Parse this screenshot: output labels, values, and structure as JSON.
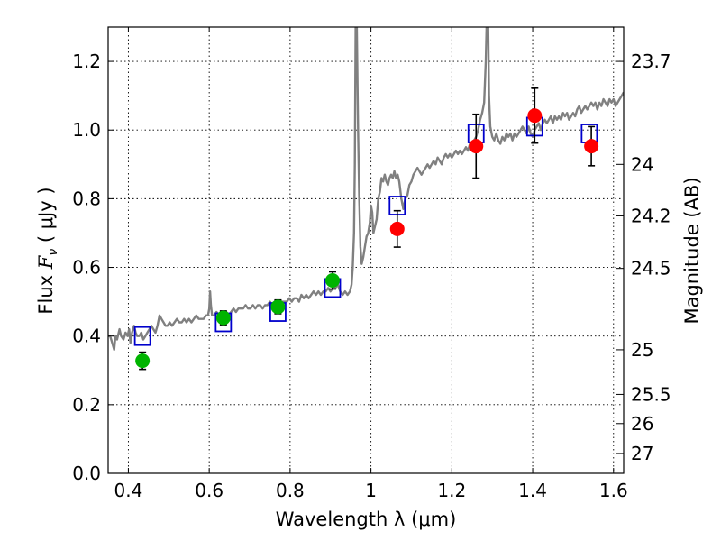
{
  "chart_data": {
    "type": "scatter",
    "title": "",
    "xlabel": "Wavelength  λ (μm)",
    "ylabel": "Flux  F_ν  ( μJy )",
    "ylabel_parts": {
      "prefix": "Flux ",
      "symbol": "F",
      "subscript": "ν",
      "suffix": " ( μJy )"
    },
    "y2label": "Magnitude (AB)",
    "xlim": [
      0.35,
      1.625
    ],
    "ylim": [
      0.0,
      1.3
    ],
    "grid": true,
    "x_ticks": [
      {
        "value": 0.4,
        "label": "0.4"
      },
      {
        "value": 0.6,
        "label": "0.6"
      },
      {
        "value": 0.8,
        "label": "0.8"
      },
      {
        "value": 1.0,
        "label": "1"
      },
      {
        "value": 1.2,
        "label": "1.2"
      },
      {
        "value": 1.4,
        "label": "1.4"
      },
      {
        "value": 1.6,
        "label": "1.6"
      }
    ],
    "y_ticks": [
      {
        "value": 0.0,
        "label": "0.0"
      },
      {
        "value": 0.2,
        "label": "0.2"
      },
      {
        "value": 0.4,
        "label": "0.4"
      },
      {
        "value": 0.6,
        "label": "0.6"
      },
      {
        "value": 0.8,
        "label": "0.8"
      },
      {
        "value": 1.0,
        "label": "1.0"
      },
      {
        "value": 1.2,
        "label": "1.2"
      }
    ],
    "y2_ticks": [
      {
        "flux": 1.2,
        "label": "23.7"
      },
      {
        "flux": 0.9,
        "label": "24"
      },
      {
        "flux": 0.75,
        "label": "24.2"
      },
      {
        "flux": 0.597,
        "label": "24.5"
      },
      {
        "flux": 0.36,
        "label": "25"
      },
      {
        "flux": 0.23,
        "label": "25.5"
      },
      {
        "flux": 0.145,
        "label": "26"
      },
      {
        "flux": 0.058,
        "label": "27"
      }
    ],
    "series": [
      {
        "kind": "line",
        "color": "#808080",
        "points": [
          [
            0.35,
            0.4
          ],
          [
            0.355,
            0.4
          ],
          [
            0.36,
            0.38
          ],
          [
            0.365,
            0.36
          ],
          [
            0.368,
            0.4
          ],
          [
            0.372,
            0.39
          ],
          [
            0.378,
            0.42
          ],
          [
            0.382,
            0.4
          ],
          [
            0.388,
            0.39
          ],
          [
            0.393,
            0.41
          ],
          [
            0.398,
            0.4
          ],
          [
            0.402,
            0.42
          ],
          [
            0.405,
            0.38
          ],
          [
            0.409,
            0.41
          ],
          [
            0.414,
            0.43
          ],
          [
            0.418,
            0.41
          ],
          [
            0.422,
            0.4
          ],
          [
            0.427,
            0.4
          ],
          [
            0.432,
            0.41
          ],
          [
            0.437,
            0.39
          ],
          [
            0.442,
            0.4
          ],
          [
            0.447,
            0.41
          ],
          [
            0.452,
            0.42
          ],
          [
            0.457,
            0.43
          ],
          [
            0.462,
            0.42
          ],
          [
            0.467,
            0.41
          ],
          [
            0.472,
            0.43
          ],
          [
            0.477,
            0.46
          ],
          [
            0.482,
            0.45
          ],
          [
            0.487,
            0.44
          ],
          [
            0.492,
            0.43
          ],
          [
            0.497,
            0.43
          ],
          [
            0.502,
            0.44
          ],
          [
            0.508,
            0.43
          ],
          [
            0.514,
            0.44
          ],
          [
            0.52,
            0.45
          ],
          [
            0.526,
            0.44
          ],
          [
            0.532,
            0.44
          ],
          [
            0.538,
            0.45
          ],
          [
            0.544,
            0.44
          ],
          [
            0.55,
            0.45
          ],
          [
            0.556,
            0.44
          ],
          [
            0.562,
            0.45
          ],
          [
            0.568,
            0.46
          ],
          [
            0.574,
            0.45
          ],
          [
            0.58,
            0.45
          ],
          [
            0.586,
            0.45
          ],
          [
            0.592,
            0.46
          ],
          [
            0.597,
            0.46
          ],
          [
            0.6,
            0.48
          ],
          [
            0.602,
            0.53
          ],
          [
            0.604,
            0.49
          ],
          [
            0.607,
            0.46
          ],
          [
            0.612,
            0.46
          ],
          [
            0.618,
            0.47
          ],
          [
            0.624,
            0.46
          ],
          [
            0.63,
            0.46
          ],
          [
            0.636,
            0.46
          ],
          [
            0.642,
            0.47
          ],
          [
            0.648,
            0.46
          ],
          [
            0.654,
            0.47
          ],
          [
            0.66,
            0.48
          ],
          [
            0.666,
            0.47
          ],
          [
            0.672,
            0.48
          ],
          [
            0.678,
            0.48
          ],
          [
            0.684,
            0.48
          ],
          [
            0.69,
            0.49
          ],
          [
            0.696,
            0.48
          ],
          [
            0.702,
            0.48
          ],
          [
            0.708,
            0.49
          ],
          [
            0.714,
            0.48
          ],
          [
            0.72,
            0.49
          ],
          [
            0.726,
            0.49
          ],
          [
            0.732,
            0.48
          ],
          [
            0.738,
            0.49
          ],
          [
            0.744,
            0.49
          ],
          [
            0.75,
            0.5
          ],
          [
            0.756,
            0.49
          ],
          [
            0.762,
            0.5
          ],
          [
            0.768,
            0.5
          ],
          [
            0.774,
            0.49
          ],
          [
            0.78,
            0.5
          ],
          [
            0.786,
            0.5
          ],
          [
            0.792,
            0.5
          ],
          [
            0.798,
            0.51
          ],
          [
            0.804,
            0.5
          ],
          [
            0.81,
            0.51
          ],
          [
            0.816,
            0.51
          ],
          [
            0.822,
            0.5
          ],
          [
            0.828,
            0.52
          ],
          [
            0.834,
            0.51
          ],
          [
            0.84,
            0.52
          ],
          [
            0.846,
            0.51
          ],
          [
            0.852,
            0.52
          ],
          [
            0.858,
            0.53
          ],
          [
            0.864,
            0.52
          ],
          [
            0.87,
            0.53
          ],
          [
            0.876,
            0.52
          ],
          [
            0.882,
            0.53
          ],
          [
            0.888,
            0.53
          ],
          [
            0.894,
            0.54
          ],
          [
            0.9,
            0.53
          ],
          [
            0.906,
            0.54
          ],
          [
            0.912,
            0.54
          ],
          [
            0.918,
            0.55
          ],
          [
            0.924,
            0.53
          ],
          [
            0.93,
            0.52
          ],
          [
            0.936,
            0.53
          ],
          [
            0.942,
            0.52
          ],
          [
            0.948,
            0.53
          ],
          [
            0.952,
            0.55
          ],
          [
            0.955,
            0.6
          ],
          [
            0.958,
            0.7
          ],
          [
            0.96,
            0.9
          ],
          [
            0.962,
            1.3
          ],
          [
            0.965,
            1.3
          ],
          [
            0.968,
            1.0
          ],
          [
            0.971,
            0.8
          ],
          [
            0.974,
            0.66
          ],
          [
            0.977,
            0.61
          ],
          [
            0.981,
            0.63
          ],
          [
            0.985,
            0.66
          ],
          [
            0.989,
            0.69
          ],
          [
            0.993,
            0.7
          ],
          [
            0.997,
            0.73
          ],
          [
            1.0,
            0.78
          ],
          [
            1.003,
            0.76
          ],
          [
            1.006,
            0.7
          ],
          [
            1.01,
            0.72
          ],
          [
            1.014,
            0.74
          ],
          [
            1.018,
            0.8
          ],
          [
            1.022,
            0.82
          ],
          [
            1.026,
            0.86
          ],
          [
            1.03,
            0.85
          ],
          [
            1.034,
            0.87
          ],
          [
            1.038,
            0.85
          ],
          [
            1.042,
            0.84
          ],
          [
            1.046,
            0.86
          ],
          [
            1.05,
            0.87
          ],
          [
            1.054,
            0.86
          ],
          [
            1.058,
            0.88
          ],
          [
            1.062,
            0.86
          ],
          [
            1.066,
            0.87
          ],
          [
            1.07,
            0.85
          ],
          [
            1.075,
            0.8
          ],
          [
            1.08,
            0.77
          ],
          [
            1.085,
            0.8
          ],
          [
            1.09,
            0.81
          ],
          [
            1.095,
            0.84
          ],
          [
            1.1,
            0.85
          ],
          [
            1.105,
            0.87
          ],
          [
            1.11,
            0.88
          ],
          [
            1.115,
            0.89
          ],
          [
            1.12,
            0.88
          ],
          [
            1.125,
            0.87
          ],
          [
            1.13,
            0.88
          ],
          [
            1.135,
            0.89
          ],
          [
            1.14,
            0.9
          ],
          [
            1.145,
            0.89
          ],
          [
            1.15,
            0.9
          ],
          [
            1.155,
            0.91
          ],
          [
            1.16,
            0.9
          ],
          [
            1.165,
            0.92
          ],
          [
            1.17,
            0.91
          ],
          [
            1.175,
            0.9
          ],
          [
            1.18,
            0.92
          ],
          [
            1.185,
            0.93
          ],
          [
            1.19,
            0.92
          ],
          [
            1.195,
            0.93
          ],
          [
            1.2,
            0.92
          ],
          [
            1.205,
            0.93
          ],
          [
            1.21,
            0.94
          ],
          [
            1.215,
            0.93
          ],
          [
            1.22,
            0.94
          ],
          [
            1.225,
            0.93
          ],
          [
            1.23,
            0.94
          ],
          [
            1.235,
            0.95
          ],
          [
            1.24,
            0.94
          ],
          [
            1.245,
            0.96
          ],
          [
            1.25,
            0.95
          ],
          [
            1.255,
            0.97
          ],
          [
            1.26,
            0.98
          ],
          [
            1.265,
            1.0
          ],
          [
            1.27,
            1.03
          ],
          [
            1.275,
            1.05
          ],
          [
            1.28,
            1.08
          ],
          [
            1.284,
            1.2
          ],
          [
            1.286,
            1.3
          ],
          [
            1.29,
            1.3
          ],
          [
            1.292,
            1.1
          ],
          [
            1.295,
            1.01
          ],
          [
            1.3,
            0.98
          ],
          [
            1.305,
            0.97
          ],
          [
            1.31,
            0.99
          ],
          [
            1.315,
            0.97
          ],
          [
            1.32,
            0.96
          ],
          [
            1.325,
            0.98
          ],
          [
            1.33,
            0.97
          ],
          [
            1.335,
            0.99
          ],
          [
            1.34,
            0.98
          ],
          [
            1.345,
            0.99
          ],
          [
            1.35,
            0.97
          ],
          [
            1.355,
            0.99
          ],
          [
            1.36,
            0.98
          ],
          [
            1.365,
            0.99
          ],
          [
            1.37,
            1.0
          ],
          [
            1.375,
            1.01
          ],
          [
            1.38,
            1.0
          ],
          [
            1.385,
            0.99
          ],
          [
            1.39,
            1.01
          ],
          [
            1.395,
            0.99
          ],
          [
            1.4,
            0.98
          ],
          [
            1.405,
            1.0
          ],
          [
            1.41,
            1.01
          ],
          [
            1.415,
            1.02
          ],
          [
            1.42,
            1.0
          ],
          [
            1.425,
            1.02
          ],
          [
            1.43,
            1.03
          ],
          [
            1.435,
            1.02
          ],
          [
            1.44,
            1.03
          ],
          [
            1.445,
            1.04
          ],
          [
            1.45,
            1.02
          ],
          [
            1.455,
            1.04
          ],
          [
            1.46,
            1.03
          ],
          [
            1.465,
            1.04
          ],
          [
            1.47,
            1.03
          ],
          [
            1.475,
            1.05
          ],
          [
            1.48,
            1.04
          ],
          [
            1.485,
            1.05
          ],
          [
            1.49,
            1.03
          ],
          [
            1.495,
            1.04
          ],
          [
            1.5,
            1.05
          ],
          [
            1.505,
            1.04
          ],
          [
            1.51,
            1.06
          ],
          [
            1.515,
            1.07
          ],
          [
            1.52,
            1.05
          ],
          [
            1.525,
            1.06
          ],
          [
            1.53,
            1.07
          ],
          [
            1.535,
            1.06
          ],
          [
            1.54,
            1.07
          ],
          [
            1.545,
            1.08
          ],
          [
            1.55,
            1.07
          ],
          [
            1.555,
            1.08
          ],
          [
            1.56,
            1.06
          ],
          [
            1.565,
            1.08
          ],
          [
            1.57,
            1.07
          ],
          [
            1.575,
            1.09
          ],
          [
            1.58,
            1.08
          ],
          [
            1.585,
            1.07
          ],
          [
            1.59,
            1.09
          ],
          [
            1.595,
            1.08
          ],
          [
            1.6,
            1.09
          ],
          [
            1.605,
            1.07
          ],
          [
            1.61,
            1.08
          ],
          [
            1.615,
            1.09
          ],
          [
            1.62,
            1.1
          ],
          [
            1.625,
            1.11
          ]
        ]
      },
      {
        "kind": "square",
        "color": "#0000cc",
        "points": [
          [
            0.435,
            0.4
          ],
          [
            0.635,
            0.44
          ],
          [
            0.77,
            0.47
          ],
          [
            0.905,
            0.54
          ],
          [
            1.065,
            0.78
          ],
          [
            1.26,
            0.99
          ],
          [
            1.405,
            1.01
          ],
          [
            1.54,
            0.99
          ]
        ]
      },
      {
        "kind": "circle",
        "color": "#00b400",
        "points": [
          {
            "x": 0.435,
            "y": 0.328,
            "err": 0.025
          },
          {
            "x": 0.635,
            "y": 0.453,
            "err": 0.02
          },
          {
            "x": 0.77,
            "y": 0.485,
            "err": 0.02
          },
          {
            "x": 0.905,
            "y": 0.562,
            "err": 0.025
          }
        ]
      },
      {
        "kind": "circle",
        "color": "#ff0000",
        "points": [
          {
            "x": 1.065,
            "y": 0.712,
            "err": 0.053
          },
          {
            "x": 1.26,
            "y": 0.953,
            "err": 0.093
          },
          {
            "x": 1.405,
            "y": 1.042,
            "err": 0.08
          },
          {
            "x": 1.545,
            "y": 0.953,
            "err": 0.057
          }
        ]
      }
    ]
  }
}
